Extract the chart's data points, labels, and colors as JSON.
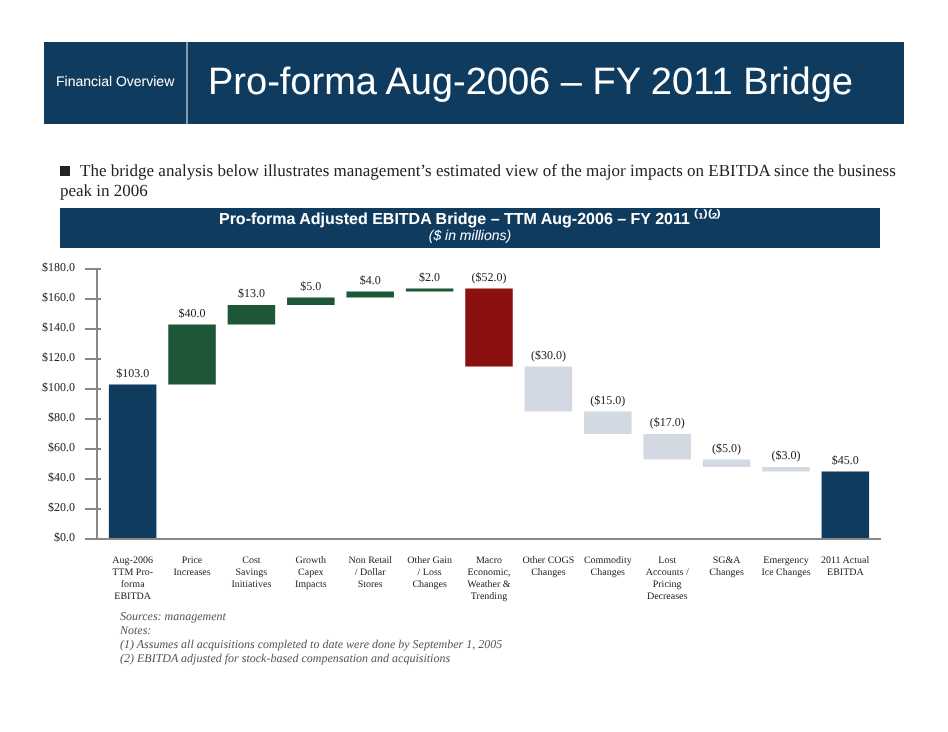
{
  "chart_data": {
    "type": "bar",
    "title": "Pro-forma Adjusted EBITDA Bridge – TTM Aug-2006 – FY 2011 ⁽¹⁾⁽²⁾",
    "subtitle": "($ in millions)",
    "categories": [
      "Aug-2006 TTM Pro-forma EBITDA",
      "Price Increases",
      "Cost Savings Initiatives",
      "Growth Capex Impacts",
      "Non Retail / Dollar Stores",
      "Other Gain / Loss Changes",
      "Macro Economic, Weather & Trending",
      "Other COGS Changes",
      "Commodity Changes",
      "Lost Accounts / Pricing Decreases",
      "SG&A Changes",
      "Emergency Ice Changes",
      "2011 Actual EBITDA"
    ],
    "values": [
      103,
      40,
      13,
      5,
      4,
      2,
      -52,
      -30,
      -15,
      -17,
      -5,
      -3,
      45
    ],
    "base": [
      0,
      103,
      143,
      156,
      161,
      165,
      167,
      115,
      85,
      70,
      53,
      48,
      0
    ],
    "colors": [
      "#0f3b5f",
      "#1e5638",
      "#1e5638",
      "#1e5638",
      "#1e5638",
      "#1e5638",
      "#8b1010",
      "#d3d9e2",
      "#d3d9e2",
      "#d3d9e2",
      "#d3d9e2",
      "#d3d9e2",
      "#0f3b5f"
    ],
    "value_labels": [
      "$103.0",
      "$40.0",
      "$13.0",
      "$5.0",
      "$4.0",
      "$2.0",
      "($52.0)",
      "($30.0)",
      "($15.0)",
      "($17.0)",
      "($5.0)",
      "($3.0)",
      "$45.0"
    ],
    "ylim": [
      0,
      180
    ],
    "yticks": [
      {
        "value": 0,
        "label": "$0.0"
      },
      {
        "value": 20,
        "label": "$20.0"
      },
      {
        "value": 40,
        "label": "$40.0"
      },
      {
        "value": 60,
        "label": "$60.0"
      },
      {
        "value": 80,
        "label": "$80.0"
      },
      {
        "value": 100,
        "label": "$100.0"
      },
      {
        "value": 120,
        "label": "$120.0"
      },
      {
        "value": 140,
        "label": "$140.0"
      },
      {
        "value": 160,
        "label": "$160.0"
      },
      {
        "value": 180,
        "label": "$180.0"
      }
    ],
    "annotations": [
      "Financial Overview",
      "Pro-forma Aug-2006 – FY 2011 Bridge",
      "The bridge analysis below illustrates management’s estimated view of the major impacts on EBITDA since the business peak in 2006",
      "Sources: management",
      "Notes:",
      "(1)    Assumes all acquisitions completed to date were done by September 1, 2005",
      "(2)    EBITDA adjusted for stock-based compensation and acquisitions"
    ]
  }
}
